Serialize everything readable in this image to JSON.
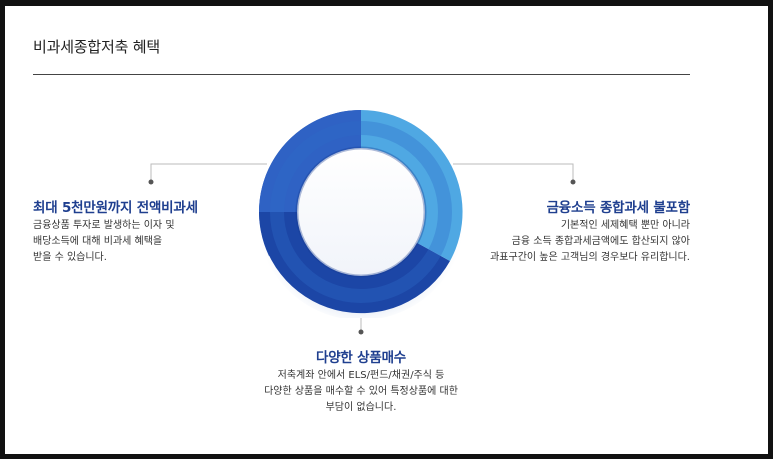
{
  "title": "비과세종합저축 혜택",
  "benefits": {
    "left": {
      "heading": "최대 5천만원까지 전액비과세",
      "lines": [
        "금융상품 투자로 발생하는 이자 및",
        "배당소득에 대해 비과세 혜택을",
        "받을 수 있습니다."
      ]
    },
    "right": {
      "heading": "금융소득 종합과세 불포함",
      "lines": [
        "기본적인 세제혜택 뿐만 아니라",
        "금융 소득 종합과세금액에도 합산되지 않아",
        "과표구간이 높은 고객님의 경우보다 유리합니다."
      ]
    },
    "bottom": {
      "heading": "다양한 상품매수",
      "lines": [
        "저축계좌 안에서 ELS/펀드/채권/주식 등",
        "다양한 상품을 매수할 수 있어 특정상품에 대한",
        "부담이 없습니다."
      ]
    }
  },
  "colors": {
    "accent_dark": "#1f3f8f",
    "ring_light": "#4fa8e3",
    "ring_mid": "#2f6cc9",
    "ring_dark": "#1c46a6"
  }
}
